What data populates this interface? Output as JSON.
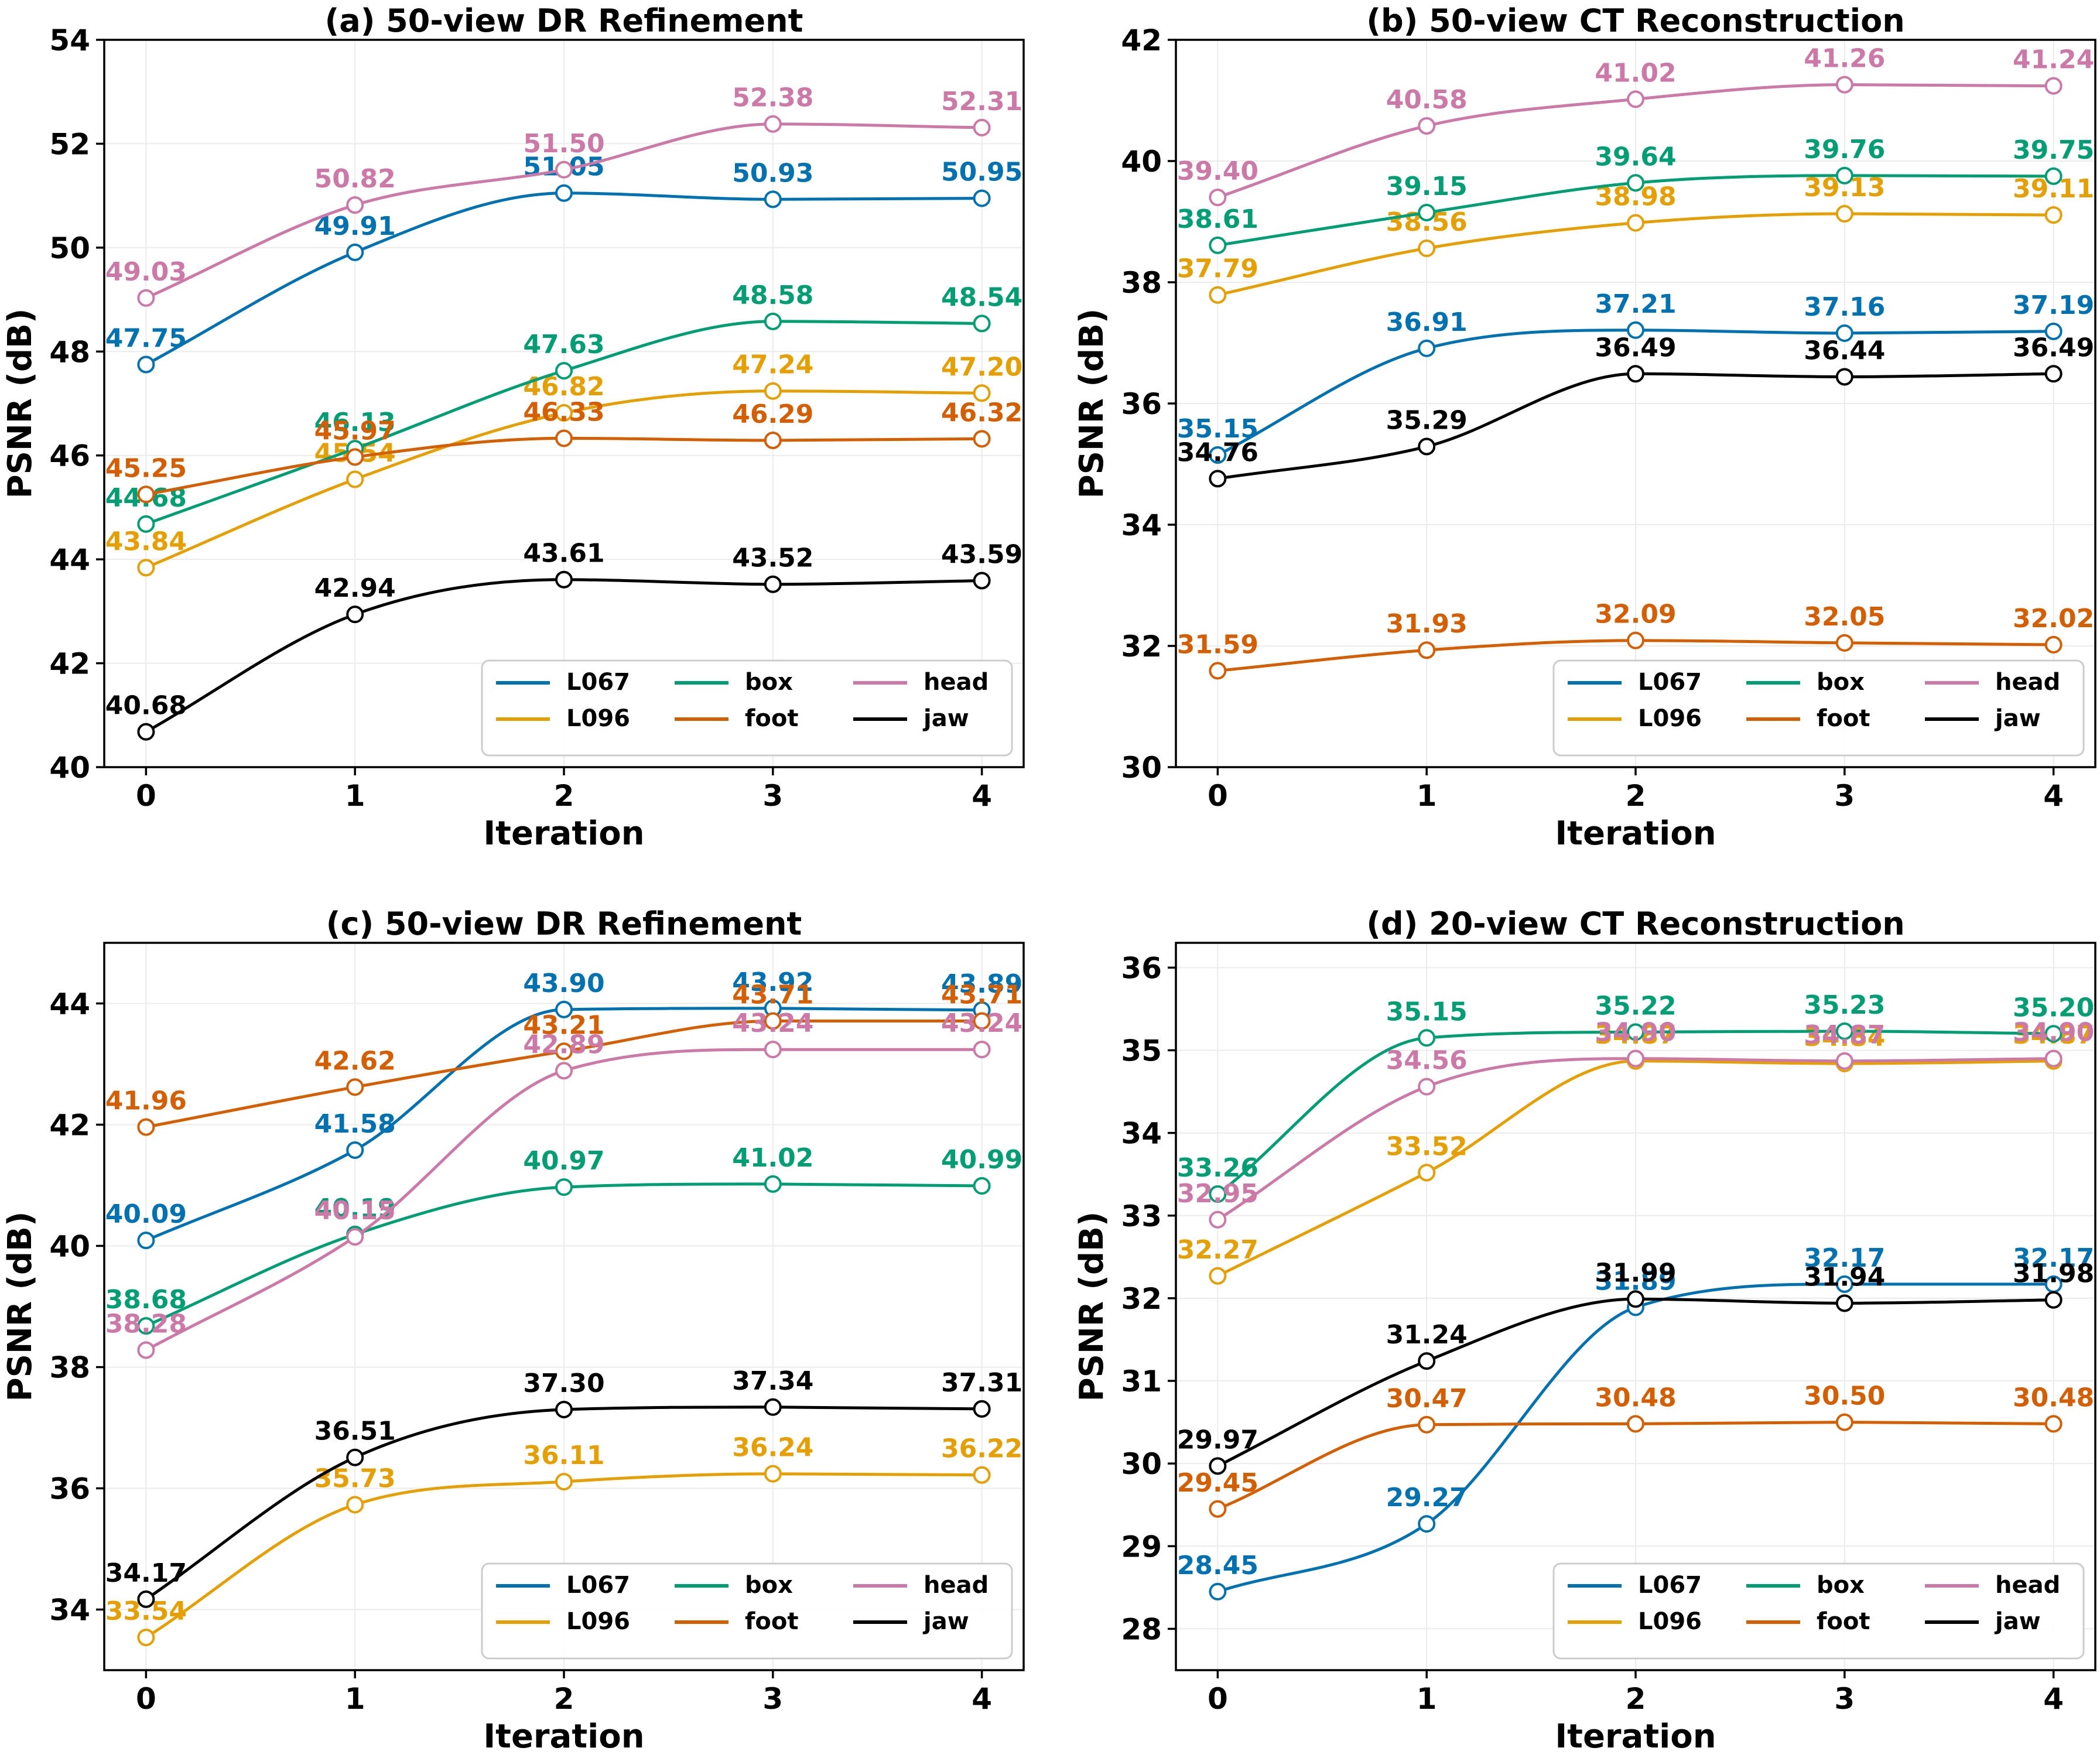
{
  "colors": {
    "L067": "#0072B2",
    "L096": "#E69F00",
    "box": "#009E73",
    "foot": "#D55E00",
    "head": "#CC79A7",
    "jaw": "#000000"
  },
  "legend_order": [
    "L067",
    "box",
    "head",
    "L096",
    "foot",
    "jaw"
  ],
  "chart_data": [
    {
      "id": "a",
      "type": "line",
      "title": "(a) 50-view DR Refinement",
      "xlabel": "Iteration",
      "ylabel": "PSNR (dB)",
      "x": [
        0,
        1,
        2,
        3,
        4
      ],
      "xlim": [
        -0.2,
        4.2
      ],
      "ylim": [
        40,
        54
      ],
      "yticks": [
        40,
        42,
        44,
        46,
        48,
        50,
        52,
        54
      ],
      "grid": true,
      "legend_position": "lower-right",
      "series": [
        {
          "name": "L067",
          "values": [
            47.75,
            49.91,
            51.05,
            50.93,
            50.95
          ],
          "labels": [
            "47.75",
            "49.91",
            "51.05",
            "50.93",
            "50.95"
          ]
        },
        {
          "name": "L096",
          "values": [
            43.84,
            45.54,
            46.82,
            47.24,
            47.2
          ],
          "labels": [
            "43.84",
            "45.54",
            "46.82",
            "47.24",
            "47.20"
          ]
        },
        {
          "name": "box",
          "values": [
            44.68,
            46.13,
            47.63,
            48.58,
            48.54
          ],
          "labels": [
            "44.68",
            "46.13",
            "47.63",
            "48.58",
            "48.54"
          ]
        },
        {
          "name": "foot",
          "values": [
            45.25,
            45.97,
            46.33,
            46.29,
            46.32
          ],
          "labels": [
            "45.25",
            "45.97",
            "46.33",
            "46.29",
            "46.32"
          ]
        },
        {
          "name": "head",
          "values": [
            49.03,
            50.82,
            51.5,
            52.38,
            52.31
          ],
          "labels": [
            "49.03",
            "50.82",
            "51.50",
            "52.38",
            "52.31"
          ]
        },
        {
          "name": "jaw",
          "values": [
            40.68,
            42.94,
            43.61,
            43.52,
            43.59
          ],
          "labels": [
            "40.68",
            "42.94",
            "43.61",
            "43.52",
            "43.59"
          ]
        }
      ]
    },
    {
      "id": "b",
      "type": "line",
      "title": "(b) 50-view CT Reconstruction",
      "xlabel": "Iteration",
      "ylabel": "PSNR (dB)",
      "x": [
        0,
        1,
        2,
        3,
        4
      ],
      "xlim": [
        -0.2,
        4.2
      ],
      "ylim": [
        30,
        42
      ],
      "yticks": [
        30,
        32,
        34,
        36,
        38,
        40,
        42
      ],
      "grid": true,
      "legend_position": "lower-right",
      "series": [
        {
          "name": "L067",
          "values": [
            35.15,
            36.91,
            37.21,
            37.16,
            37.19
          ],
          "labels": [
            "35.15",
            "36.91",
            "37.21",
            "37.16",
            "37.19"
          ]
        },
        {
          "name": "L096",
          "values": [
            37.79,
            38.56,
            38.98,
            39.13,
            39.11
          ],
          "labels": [
            "37.79",
            "38.56",
            "38.98",
            "39.13",
            "39.11"
          ]
        },
        {
          "name": "box",
          "values": [
            38.61,
            39.15,
            39.64,
            39.76,
            39.75
          ],
          "labels": [
            "38.61",
            "39.15",
            "39.64",
            "39.76",
            "39.75"
          ]
        },
        {
          "name": "foot",
          "values": [
            31.59,
            31.93,
            32.09,
            32.05,
            32.02
          ],
          "labels": [
            "31.59",
            "31.93",
            "32.09",
            "32.05",
            "32.02"
          ]
        },
        {
          "name": "head",
          "values": [
            39.4,
            40.58,
            41.02,
            41.26,
            41.24
          ],
          "labels": [
            "39.40",
            "40.58",
            "41.02",
            "41.26",
            "41.24"
          ]
        },
        {
          "name": "jaw",
          "values": [
            34.76,
            35.29,
            36.49,
            36.44,
            36.49
          ],
          "labels": [
            "34.76",
            "35.29",
            "36.49",
            "36.44",
            "36.49"
          ]
        }
      ]
    },
    {
      "id": "c",
      "type": "line",
      "title": "(c) 50-view DR Refinement",
      "xlabel": "Iteration",
      "ylabel": "PSNR (dB)",
      "x": [
        0,
        1,
        2,
        3,
        4
      ],
      "xlim": [
        -0.2,
        4.2
      ],
      "ylim": [
        33,
        45
      ],
      "yticks": [
        34,
        36,
        38,
        40,
        42,
        44
      ],
      "grid": true,
      "legend_position": "lower-right",
      "series": [
        {
          "name": "L067",
          "values": [
            40.09,
            41.58,
            43.9,
            43.92,
            43.89
          ],
          "labels": [
            "40.09",
            "41.58",
            "43.90",
            "43.92",
            "43.89"
          ]
        },
        {
          "name": "L096",
          "values": [
            33.54,
            35.73,
            36.11,
            36.24,
            36.22
          ],
          "labels": [
            "33.54",
            "35.73",
            "36.11",
            "36.24",
            "36.22"
          ]
        },
        {
          "name": "box",
          "values": [
            38.68,
            40.19,
            40.97,
            41.02,
            40.99
          ],
          "labels": [
            "38.68",
            "40.19",
            "40.97",
            "41.02",
            "40.99"
          ]
        },
        {
          "name": "foot",
          "values": [
            41.96,
            42.62,
            43.21,
            43.71,
            43.71
          ],
          "labels": [
            "41.96",
            "42.62",
            "43.21",
            "43.71",
            "43.71"
          ]
        },
        {
          "name": "head",
          "values": [
            38.28,
            40.15,
            42.89,
            43.24,
            43.24
          ],
          "labels": [
            "38.28",
            "40.15",
            "42.89",
            "43.24",
            "43.24"
          ]
        },
        {
          "name": "jaw",
          "values": [
            34.17,
            36.51,
            37.3,
            37.34,
            37.31
          ],
          "labels": [
            "34.17",
            "36.51",
            "37.30",
            "37.34",
            "37.31"
          ]
        }
      ]
    },
    {
      "id": "d",
      "type": "line",
      "title": "(d) 20-view CT Reconstruction",
      "xlabel": "Iteration",
      "ylabel": "PSNR (dB)",
      "x": [
        0,
        1,
        2,
        3,
        4
      ],
      "xlim": [
        -0.2,
        4.2
      ],
      "ylim": [
        27.5,
        36.3
      ],
      "yticks": [
        28,
        29,
        30,
        31,
        32,
        33,
        34,
        35,
        36
      ],
      "grid": true,
      "legend_position": "lower-right",
      "series": [
        {
          "name": "L067",
          "values": [
            28.45,
            29.27,
            31.89,
            32.17,
            32.17
          ],
          "labels": [
            "28.45",
            "29.27",
            "31.89",
            "32.17",
            "32.17"
          ]
        },
        {
          "name": "L096",
          "values": [
            32.27,
            33.52,
            34.87,
            34.84,
            34.87
          ],
          "labels": [
            "32.27",
            "33.52",
            "34.87",
            "34.84",
            "34.87"
          ]
        },
        {
          "name": "box",
          "values": [
            33.26,
            35.15,
            35.22,
            35.23,
            35.2
          ],
          "labels": [
            "33.26",
            "35.15",
            "35.22",
            "35.23",
            "35.20"
          ]
        },
        {
          "name": "foot",
          "values": [
            29.45,
            30.47,
            30.48,
            30.5,
            30.48
          ],
          "labels": [
            "29.45",
            "30.47",
            "30.48",
            "30.50",
            "30.48"
          ]
        },
        {
          "name": "head",
          "values": [
            32.95,
            34.56,
            34.9,
            34.87,
            34.9
          ],
          "labels": [
            "32.95",
            "34.56",
            "34.90",
            "34.87",
            "34.90"
          ]
        },
        {
          "name": "jaw",
          "values": [
            29.97,
            31.24,
            31.99,
            31.94,
            31.98
          ],
          "labels": [
            "29.97",
            "31.24",
            "31.99",
            "31.94",
            "31.98"
          ]
        }
      ]
    }
  ]
}
